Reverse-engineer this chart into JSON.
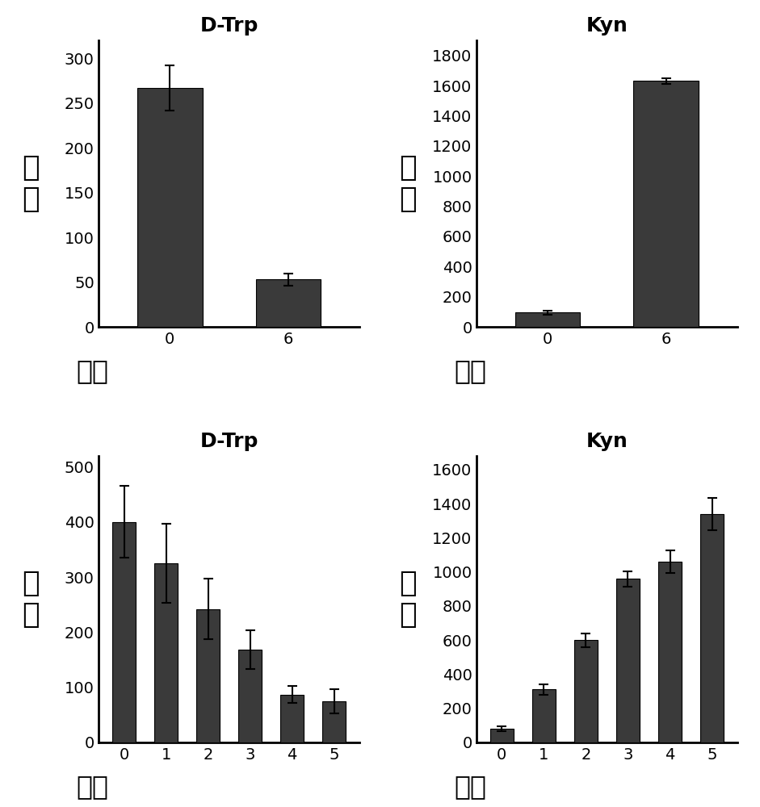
{
  "top_left": {
    "title": "D-Trp",
    "xlabel": "天数",
    "ylabel": "强度",
    "x_labels": [
      "0",
      "6"
    ],
    "values": [
      267,
      53
    ],
    "errors": [
      25,
      7
    ],
    "ylim": [
      0,
      320
    ],
    "yticks": [
      0,
      50,
      100,
      150,
      200,
      250,
      300
    ],
    "bar_color": "#3a3a3a"
  },
  "top_right": {
    "title": "Kyn",
    "xlabel": "天数",
    "ylabel": "强度",
    "x_labels": [
      "0",
      "6"
    ],
    "values": [
      95,
      1630
    ],
    "errors": [
      12,
      18
    ],
    "ylim": [
      0,
      1900
    ],
    "yticks": [
      0,
      200,
      400,
      600,
      800,
      1000,
      1200,
      1400,
      1600,
      1800
    ],
    "bar_color": "#3a3a3a"
  },
  "bottom_left": {
    "title": "D-Trp",
    "xlabel": "天数",
    "ylabel": "强度",
    "x_labels": [
      "0",
      "1",
      "2",
      "3",
      "4",
      "5"
    ],
    "values": [
      400,
      325,
      242,
      168,
      87,
      75
    ],
    "errors": [
      65,
      72,
      55,
      35,
      15,
      22
    ],
    "ylim": [
      0,
      520
    ],
    "yticks": [
      0,
      100,
      200,
      300,
      400,
      500
    ],
    "bar_color": "#3a3a3a"
  },
  "bottom_right": {
    "title": "Kyn",
    "xlabel": "天数",
    "ylabel": "强度",
    "x_labels": [
      "0",
      "1",
      "2",
      "3",
      "4",
      "5"
    ],
    "values": [
      80,
      310,
      600,
      960,
      1060,
      1340
    ],
    "errors": [
      15,
      30,
      40,
      45,
      65,
      95
    ],
    "ylim": [
      0,
      1680
    ],
    "yticks": [
      0,
      200,
      400,
      600,
      800,
      1000,
      1200,
      1400,
      1600
    ],
    "bar_color": "#3a3a3a"
  },
  "background_color": "#ffffff",
  "title_fontsize": 18,
  "tick_fontsize": 14,
  "chinese_fontsize": 26,
  "xlabel_fontsize": 24
}
